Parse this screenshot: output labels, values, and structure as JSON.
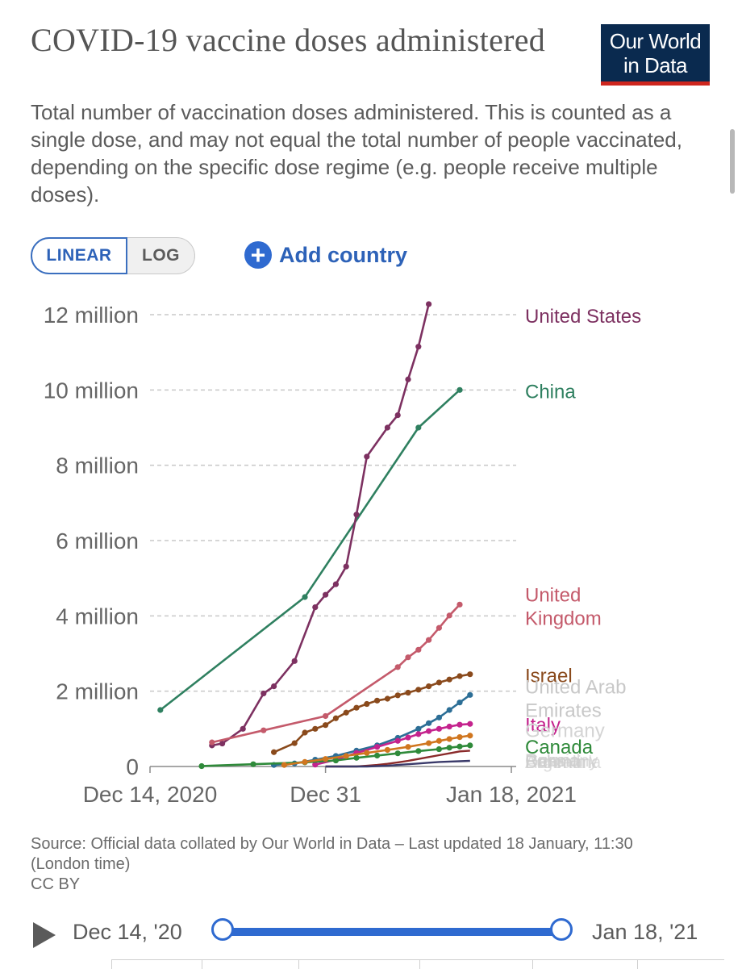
{
  "header": {
    "title": "COVID-19 vaccine doses administered",
    "logo_line1": "Our World",
    "logo_line2": "in Data",
    "subtitle": "Total number of vaccination doses administered. This is counted as a single dose, and may not equal the total number of people vaccinated, depending on the specific dose regime (e.g. people receive multiple doses)."
  },
  "controls": {
    "linear_label": "LINEAR",
    "log_label": "LOG",
    "add_country_label": "Add country"
  },
  "colors": {
    "united_states": "#7d3161",
    "china": "#2f8060",
    "united_kingdom": "#c45a6b",
    "israel": "#8a4a1c",
    "uae": "#2c6e96",
    "italy": "#c4238d",
    "canada": "#2f8a3a",
    "germany": "#d0761f",
    "grid": "#c8c8c8",
    "accent": "#2f6ad0"
  },
  "chart_data": {
    "type": "line",
    "title": "COVID-19 vaccine doses administered",
    "xlabel": "",
    "ylabel": "",
    "xlim": [
      0,
      35
    ],
    "ylim": [
      0,
      12000000
    ],
    "x_ticks": [
      {
        "x": 0,
        "label": "Dec 14, 2020"
      },
      {
        "x": 17,
        "label": "Dec 31"
      },
      {
        "x": 35,
        "label": "Jan 18, 2021"
      }
    ],
    "y_ticks": [
      {
        "y": 0,
        "label": "0"
      },
      {
        "y": 2000000,
        "label": "2 million"
      },
      {
        "y": 4000000,
        "label": "4 million"
      },
      {
        "y": 6000000,
        "label": "6 million"
      },
      {
        "y": 8000000,
        "label": "8 million"
      },
      {
        "y": 10000000,
        "label": "10 million"
      },
      {
        "y": 12000000,
        "label": "12 million"
      }
    ],
    "series": [
      {
        "name": "China",
        "label": "China",
        "color": "#2f8060",
        "markers": true,
        "x": [
          1,
          15,
          26,
          30
        ],
        "y": [
          1500000,
          4500000,
          9000000,
          10000000
        ]
      },
      {
        "name": "United States",
        "label": "United States",
        "color": "#7d3161",
        "markers": true,
        "x": [
          6,
          7,
          9,
          11,
          12,
          14,
          16,
          17,
          18,
          19,
          20,
          21,
          23,
          24,
          25,
          26,
          27,
          28,
          29
        ],
        "y": [
          560000,
          610000,
          1000000,
          1940000,
          2130000,
          2800000,
          4230000,
          4560000,
          4840000,
          5310000,
          6690000,
          8230000,
          9000000,
          9330000,
          10280000,
          11150000,
          12280000,
          null,
          null
        ]
      },
      {
        "name": "United Kingdom",
        "label": "United Kingdom",
        "color": "#c45a6b",
        "markers": true,
        "x": [
          6,
          11,
          17,
          24,
          25,
          26,
          27,
          28,
          29,
          30,
          31
        ],
        "y": [
          640000,
          960000,
          1340000,
          2640000,
          2900000,
          3100000,
          3360000,
          3680000,
          4010000,
          4300000,
          null
        ]
      },
      {
        "name": "Israel",
        "label": "Israel",
        "color": "#8a4a1c",
        "markers": true,
        "x": [
          12,
          14,
          15,
          16,
          17,
          18,
          19,
          20,
          21,
          22,
          23,
          24,
          25,
          26,
          27,
          28,
          29,
          30,
          31
        ],
        "y": [
          380000,
          620000,
          900000,
          1000000,
          1100000,
          1280000,
          1430000,
          1560000,
          1660000,
          1750000,
          1800000,
          1890000,
          1960000,
          2040000,
          2130000,
          2230000,
          2310000,
          2400000,
          2450000
        ]
      },
      {
        "name": "United Arab Emirates",
        "label": "United Arab Emirates",
        "color": "#2c6e96",
        "markers": true,
        "x": [
          12,
          14,
          16,
          18,
          20,
          22,
          24,
          26,
          27,
          28,
          29,
          30,
          31
        ],
        "y": [
          40000,
          80000,
          180000,
          280000,
          420000,
          560000,
          760000,
          1000000,
          1150000,
          1300000,
          1500000,
          1700000,
          1900000
        ]
      },
      {
        "name": "Italy",
        "label": "Italy",
        "color": "#c4238d",
        "markers": true,
        "x": [
          16,
          18,
          20,
          22,
          24,
          25,
          26,
          27,
          28,
          29,
          30,
          31
        ],
        "y": [
          50000,
          180000,
          360000,
          520000,
          680000,
          770000,
          860000,
          940000,
          1000000,
          1060000,
          1110000,
          1130000
        ]
      },
      {
        "name": "Canada",
        "label": "Canada",
        "color": "#2f8a3a",
        "markers": true,
        "x": [
          5,
          10,
          15,
          18,
          20,
          22,
          24,
          26,
          28,
          29,
          30,
          31
        ],
        "y": [
          10000,
          60000,
          110000,
          160000,
          230000,
          290000,
          350000,
          410000,
          460000,
          500000,
          530000,
          560000
        ]
      },
      {
        "name": "Germany",
        "label": "Germany",
        "color": "#d0761f",
        "markers": true,
        "x": [
          13,
          15,
          17,
          19,
          21,
          23,
          25,
          27,
          28,
          29,
          30,
          31
        ],
        "y": [
          40000,
          120000,
          200000,
          280000,
          360000,
          440000,
          520000,
          620000,
          680000,
          730000,
          780000,
          820000
        ]
      }
    ],
    "overlapping_labels": [
      "Germany",
      "Bahrain",
      "Russia",
      "Denmark",
      "Poland",
      "Argentina"
    ]
  },
  "footer": {
    "source": "Source: Official data collated by Our World in Data – Last updated 18 January, 11:30 (London time)",
    "license": "CC BY",
    "timeline_start": "Dec 14, '20",
    "timeline_end": "Jan 18, '21"
  }
}
